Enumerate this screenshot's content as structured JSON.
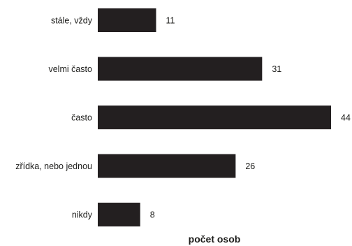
{
  "chart_data": {
    "type": "bar",
    "orientation": "horizontal",
    "categories": [
      "stále, vždy",
      "velmi často",
      "často",
      "zřídka, nebo jednou",
      "nikdy"
    ],
    "values": [
      11,
      31,
      44,
      26,
      8
    ],
    "title": "",
    "xlabel": "počet osob",
    "ylabel": "",
    "xlim": [
      0,
      44
    ],
    "grid": false,
    "legend": "none",
    "bar_color": "#231f20"
  }
}
